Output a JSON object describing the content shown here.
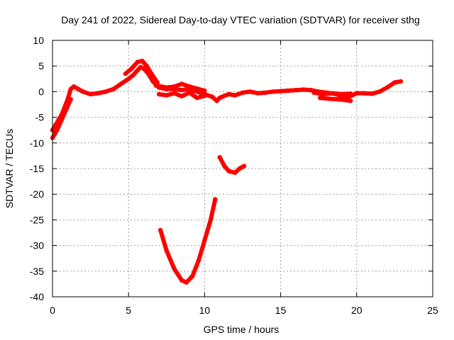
{
  "chart_data": {
    "type": "scatter",
    "title": "Day 241 of 2022, Sidereal Day-to-day VTEC variation (SDTVAR) for receiver sthg",
    "xlabel": "GPS time / hours",
    "ylabel": "SDTVAR / TECUs",
    "xlim": [
      0,
      25
    ],
    "ylim": [
      -40,
      10
    ],
    "xticks": [
      0,
      5,
      10,
      15,
      20,
      25
    ],
    "yticks": [
      -40,
      -35,
      -30,
      -25,
      -20,
      -15,
      -10,
      -5,
      0,
      5,
      10
    ],
    "grid": true,
    "series_color": "#ff0000",
    "series": [
      {
        "name": "main-trace",
        "x": [
          0.0,
          0.2,
          0.4,
          0.6,
          0.8,
          1.0,
          1.2,
          1.4,
          1.7,
          2.0,
          2.5,
          3.0,
          3.5,
          4.0,
          4.5,
          5.0,
          5.3,
          5.6,
          5.8,
          6.0,
          6.3,
          6.6,
          7.0,
          7.5,
          8.0,
          8.5,
          9.0,
          9.5,
          10.0,
          10.5,
          10.8,
          11.0,
          11.3,
          11.6,
          12.0,
          12.5,
          13.0,
          13.5,
          14.0,
          14.5,
          15.0,
          15.5,
          16.0,
          16.5,
          17.0,
          17.5,
          18.0,
          18.5,
          19.0,
          19.5,
          20.0,
          20.5,
          21.0,
          21.5,
          22.0,
          22.5,
          22.9
        ],
        "y": [
          -7.5,
          -6.5,
          -5.5,
          -4.5,
          -3.0,
          -1.5,
          0.5,
          1.0,
          0.5,
          0.0,
          -0.5,
          -0.3,
          0.0,
          0.5,
          1.5,
          2.5,
          3.2,
          4.2,
          4.8,
          4.5,
          3.5,
          2.0,
          0.8,
          0.5,
          0.5,
          0.3,
          0.5,
          0.0,
          -0.5,
          -1.0,
          -1.8,
          -1.2,
          -0.8,
          -0.5,
          -0.7,
          -0.2,
          0.0,
          -0.3,
          -0.2,
          0.0,
          0.1,
          0.2,
          0.3,
          0.4,
          0.3,
          0.0,
          -0.2,
          -0.4,
          -0.8,
          -1.0,
          -0.3,
          -0.3,
          -0.4,
          0.0,
          0.8,
          1.8,
          2.0
        ]
      },
      {
        "name": "lower-branch",
        "x": [
          0.0,
          0.3,
          0.6,
          0.9,
          1.2
        ],
        "y": [
          -9.0,
          -7.5,
          -5.5,
          -3.5,
          -1.5
        ]
      },
      {
        "name": "peak-upper-branch",
        "x": [
          4.8,
          5.2,
          5.6,
          5.9,
          6.2,
          6.5,
          6.9
        ],
        "y": [
          3.5,
          4.5,
          5.8,
          6.0,
          5.0,
          3.5,
          1.8
        ]
      },
      {
        "name": "upper-band-7-to-10h",
        "x": [
          6.8,
          7.5,
          8.0,
          8.5,
          9.0,
          9.5,
          10.0
        ],
        "y": [
          1.2,
          0.8,
          1.0,
          1.5,
          1.0,
          0.6,
          0.2
        ]
      },
      {
        "name": "lower-band-7-to-10h",
        "x": [
          7.0,
          7.5,
          8.0,
          8.5,
          9.0,
          9.5,
          10.0
        ],
        "y": [
          -0.5,
          -0.7,
          -0.3,
          -0.9,
          -0.2,
          -1.2,
          -0.8
        ]
      },
      {
        "name": "upper-band-17-to-19h",
        "x": [
          17.2,
          17.8,
          18.4,
          19.0,
          19.6
        ],
        "y": [
          -0.2,
          -0.5,
          -0.3,
          -0.5,
          -0.4
        ]
      },
      {
        "name": "lower-band-17-to-19h",
        "x": [
          17.6,
          18.2,
          18.8,
          19.2,
          19.6
        ],
        "y": [
          -1.2,
          -1.4,
          -1.5,
          -1.6,
          -1.8
        ]
      },
      {
        "name": "u-shaped-arc",
        "x": [
          7.1,
          7.5,
          8.0,
          8.5,
          8.8,
          9.2,
          9.6,
          10.0,
          10.4,
          10.7
        ],
        "y": [
          -27.0,
          -31.0,
          -34.5,
          -36.8,
          -37.2,
          -36.0,
          -33.0,
          -29.0,
          -25.0,
          -21.0
        ]
      },
      {
        "name": "short-arc",
        "x": [
          11.0,
          11.3,
          11.6,
          12.0,
          12.3,
          12.6
        ],
        "y": [
          -12.8,
          -14.5,
          -15.5,
          -15.8,
          -15.0,
          -14.5
        ]
      }
    ]
  }
}
